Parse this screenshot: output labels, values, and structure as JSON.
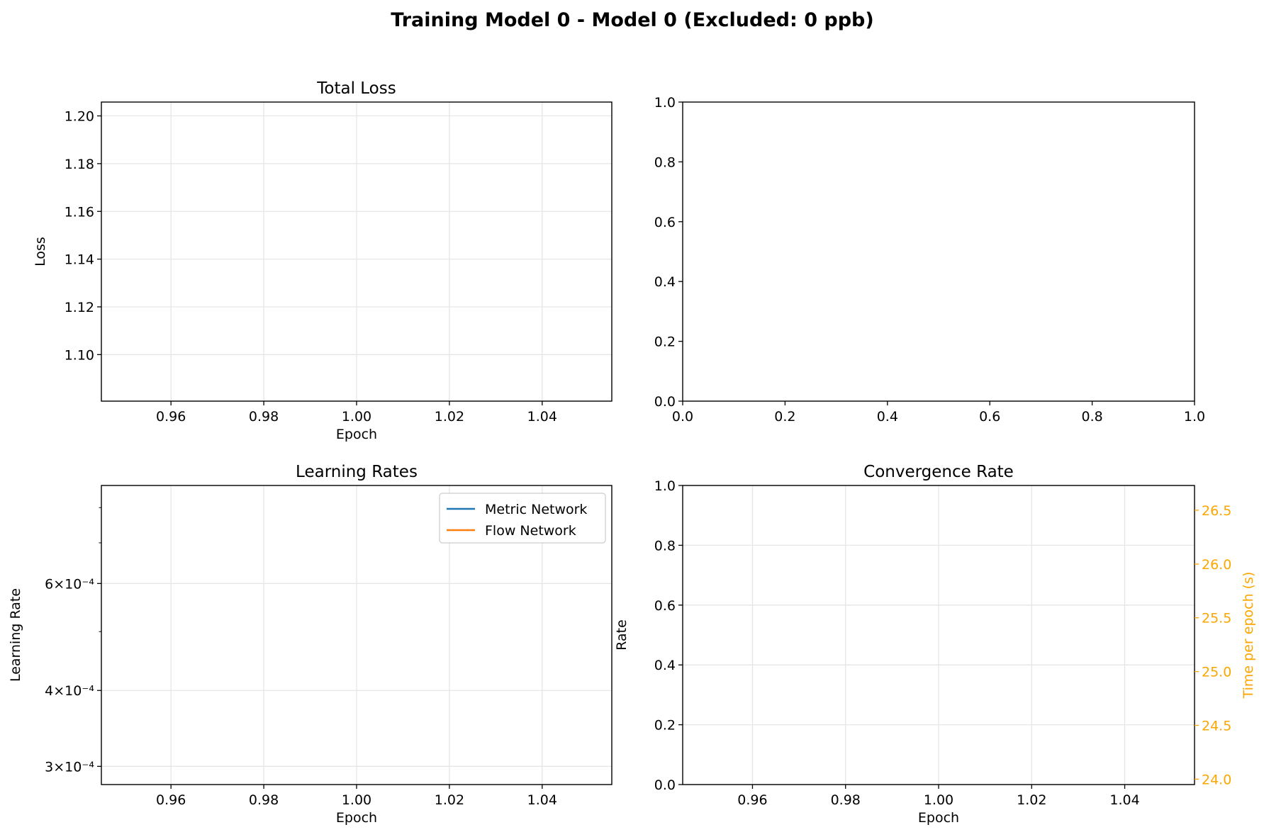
{
  "figure": {
    "suptitle": "Training Model 0 - Model 0 (Excluded: 0 ppb)"
  },
  "colors": {
    "metric_network": "#1f77b4",
    "flow_network": "#ff7f0e",
    "time_axis": "#ffa500",
    "grid": "#e6e6e6",
    "spine": "#000000"
  },
  "chart_data": [
    {
      "id": "total_loss",
      "type": "line",
      "title": "Total Loss",
      "xlabel": "Epoch",
      "ylabel": "Loss",
      "xlim": [
        0.945,
        1.055
      ],
      "ylim": [
        1.0805,
        1.2058
      ],
      "xticks": [
        0.96,
        0.98,
        1.0,
        1.02,
        1.04
      ],
      "xtick_labels": [
        "0.96",
        "0.98",
        "1.00",
        "1.02",
        "1.04"
      ],
      "yticks": [
        1.1,
        1.12,
        1.14,
        1.16,
        1.18,
        1.2
      ],
      "ytick_labels": [
        "1.10",
        "1.12",
        "1.14",
        "1.16",
        "1.18",
        "1.20"
      ],
      "grid": true,
      "series": []
    },
    {
      "id": "empty_axes",
      "type": "line",
      "title": "",
      "xlabel": "",
      "ylabel": "",
      "xlim": [
        0,
        1
      ],
      "ylim": [
        0,
        1
      ],
      "xticks": [
        0,
        0.2,
        0.4,
        0.6,
        0.8,
        1.0
      ],
      "xtick_labels": [
        "0.0",
        "0.2",
        "0.4",
        "0.6",
        "0.8",
        "1.0"
      ],
      "yticks": [
        0,
        0.2,
        0.4,
        0.6,
        0.8,
        1.0
      ],
      "ytick_labels": [
        "0.0",
        "0.2",
        "0.4",
        "0.6",
        "0.8",
        "1.0"
      ],
      "grid": false,
      "series": []
    },
    {
      "id": "learning_rates",
      "type": "line",
      "title": "Learning Rates",
      "xlabel": "Epoch",
      "ylabel": "Learning Rate",
      "xlim": [
        0.945,
        1.055
      ],
      "ylim": [
        0.00028,
        0.00087
      ],
      "yscale": "log",
      "xticks": [
        0.96,
        0.98,
        1.0,
        1.02,
        1.04
      ],
      "xtick_labels": [
        "0.96",
        "0.98",
        "1.00",
        "1.02",
        "1.04"
      ],
      "yticks": [
        0.0003,
        0.0004,
        0.0006
      ],
      "ytick_labels": [
        "3×10⁻⁴",
        "4×10⁻⁴",
        "6×10⁻⁴"
      ],
      "yminor_ticks": [
        0.0005,
        0.0007,
        0.0008
      ],
      "grid": true,
      "legend": {
        "position": "upper right",
        "entries": [
          {
            "name": "Metric Network",
            "color": "#1f77b4"
          },
          {
            "name": "Flow Network",
            "color": "#ff7f0e"
          }
        ]
      },
      "series": [
        {
          "name": "Metric Network",
          "x": [],
          "y": []
        },
        {
          "name": "Flow Network",
          "x": [],
          "y": []
        }
      ]
    },
    {
      "id": "convergence_rate",
      "type": "line",
      "title": "Convergence Rate",
      "xlabel": "Epoch",
      "ylabel": "Rate",
      "ylabel_right": "Time per epoch (s)",
      "xlim": [
        0.945,
        1.055
      ],
      "ylim": [
        0,
        1
      ],
      "ylim_right": [
        23.95,
        26.73
      ],
      "xticks": [
        0.96,
        0.98,
        1.0,
        1.02,
        1.04
      ],
      "xtick_labels": [
        "0.96",
        "0.98",
        "1.00",
        "1.02",
        "1.04"
      ],
      "yticks": [
        0,
        0.2,
        0.4,
        0.6,
        0.8,
        1.0
      ],
      "ytick_labels": [
        "0.0",
        "0.2",
        "0.4",
        "0.6",
        "0.8",
        "1.0"
      ],
      "yticks_right": [
        24.0,
        24.5,
        25.0,
        25.5,
        26.0,
        26.5
      ],
      "ytick_labels_right": [
        "24.0",
        "24.5",
        "25.0",
        "25.5",
        "26.0",
        "26.5"
      ],
      "grid": true,
      "series": []
    }
  ]
}
